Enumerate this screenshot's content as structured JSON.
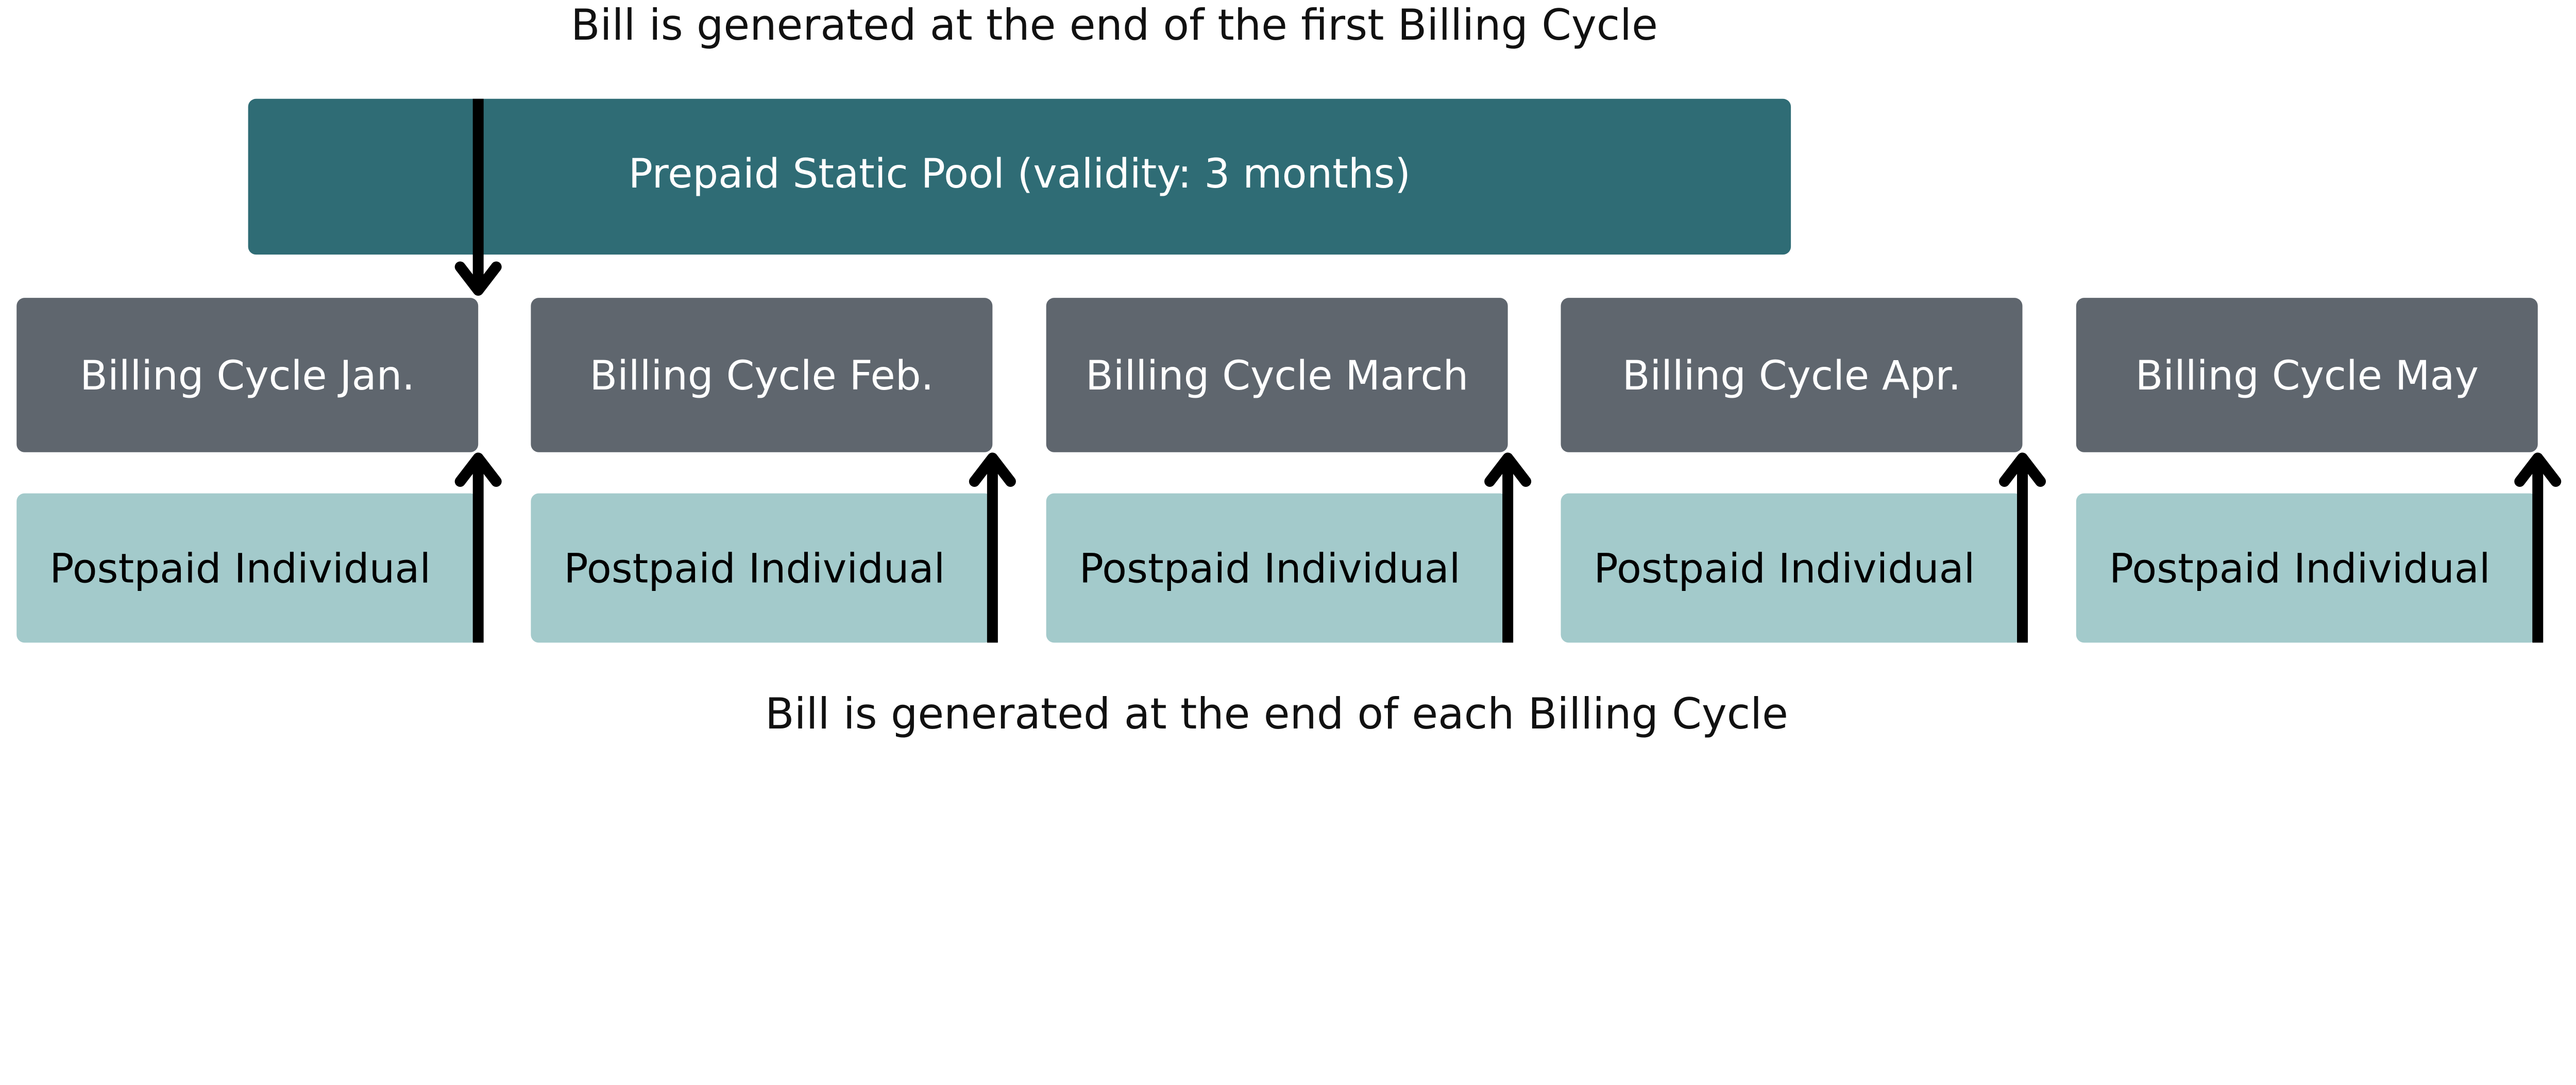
{
  "top_caption": "Bill is generated at the end of the first Billing Cycle",
  "bottom_caption": "Bill is generated at the end of each Billing Cycle",
  "prepaid_pool": {
    "label": "Prepaid Static Pool (validity: 3 months)"
  },
  "billing_cycles": [
    {
      "label": "Billing Cycle Jan."
    },
    {
      "label": "Billing Cycle Feb."
    },
    {
      "label": "Billing Cycle March"
    },
    {
      "label": "Billing Cycle Apr."
    },
    {
      "label": "Billing Cycle May"
    }
  ],
  "postpaid": [
    {
      "label": "Postpaid Individual"
    },
    {
      "label": "Postpaid Individual"
    },
    {
      "label": "Postpaid Individual"
    },
    {
      "label": "Postpaid Individual"
    },
    {
      "label": "Postpaid Individual"
    }
  ],
  "colors": {
    "prepaid": "#2f6c75",
    "billing": "#5f666e",
    "postpaid": "#a3cacb",
    "arrow": "#000000"
  }
}
